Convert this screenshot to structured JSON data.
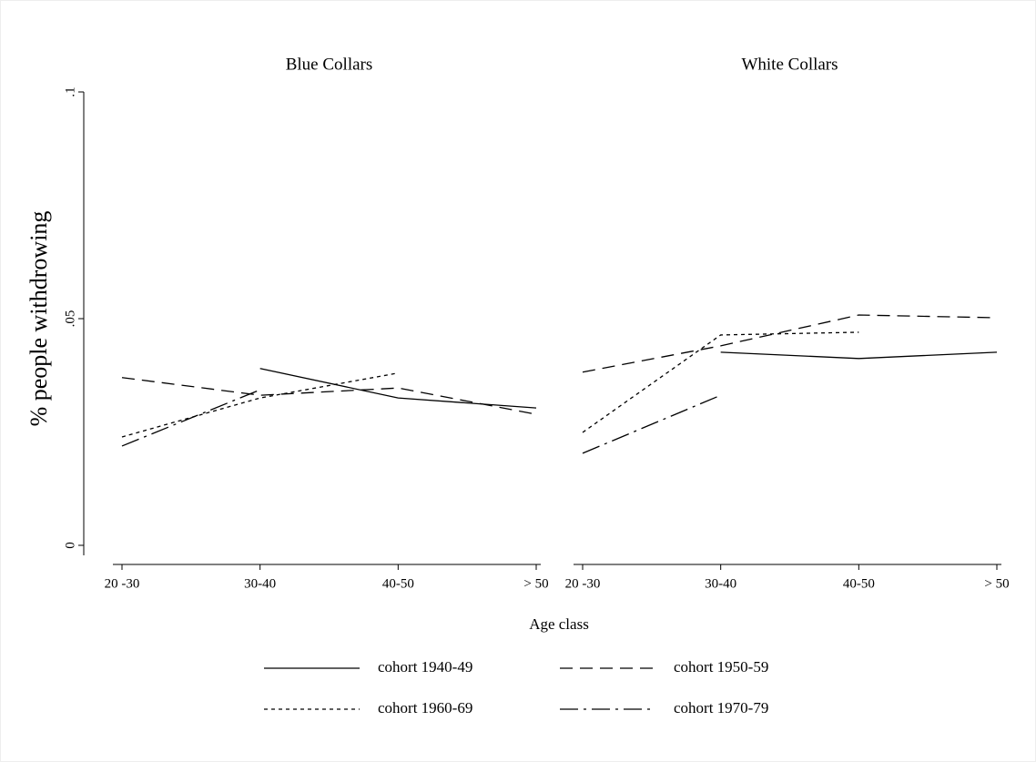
{
  "chart_data": [
    {
      "type": "line",
      "title": "Blue Collars",
      "ylabel": "% people withdrowing",
      "xlabel": "Age class",
      "categories": [
        "20 -30",
        "30-40",
        "40-50",
        "> 50"
      ],
      "ylim": [
        0,
        0.1
      ],
      "yticks": [
        0,
        {
          "value": 0.05,
          "label": ".05"
        },
        {
          "value": 0.1,
          "label": ".1"
        }
      ],
      "series": [
        {
          "name": "cohort 1940-49",
          "color": "#000000",
          "dash": "solid",
          "values": [
            null,
            0.039,
            0.0325,
            0.0303
          ]
        },
        {
          "name": "cohort 1950-59",
          "color": "#000000",
          "dash": "dashed",
          "values": [
            0.037,
            0.0331,
            0.0347,
            0.0289
          ]
        },
        {
          "name": "cohort 1960-69",
          "color": "#000000",
          "dash": "dotted",
          "values": [
            0.0239,
            0.0325,
            0.038,
            null
          ]
        },
        {
          "name": "cohort 1970-79",
          "color": "#000000",
          "dash": "dashdot",
          "values": [
            0.0219,
            0.0343,
            null,
            null
          ]
        }
      ]
    },
    {
      "type": "line",
      "title": "White Collars",
      "categories": [
        "20 -30",
        "30-40",
        "40-50",
        "> 50"
      ],
      "ylim": [
        0,
        0.1
      ],
      "series": [
        {
          "color": "#000000",
          "dash": "solid",
          "values": [
            null,
            0.0426,
            0.0412,
            0.0426
          ]
        },
        {
          "color": "#000000",
          "dash": "dashed",
          "values": [
            0.0382,
            0.044,
            0.0508,
            0.0502
          ]
        },
        {
          "color": "#000000",
          "dash": "dotted",
          "values": [
            0.0249,
            0.0464,
            0.047,
            null
          ]
        },
        {
          "color": "#000000",
          "dash": "dashdot",
          "values": [
            0.0203,
            0.0331,
            null,
            null
          ]
        }
      ]
    }
  ]
}
